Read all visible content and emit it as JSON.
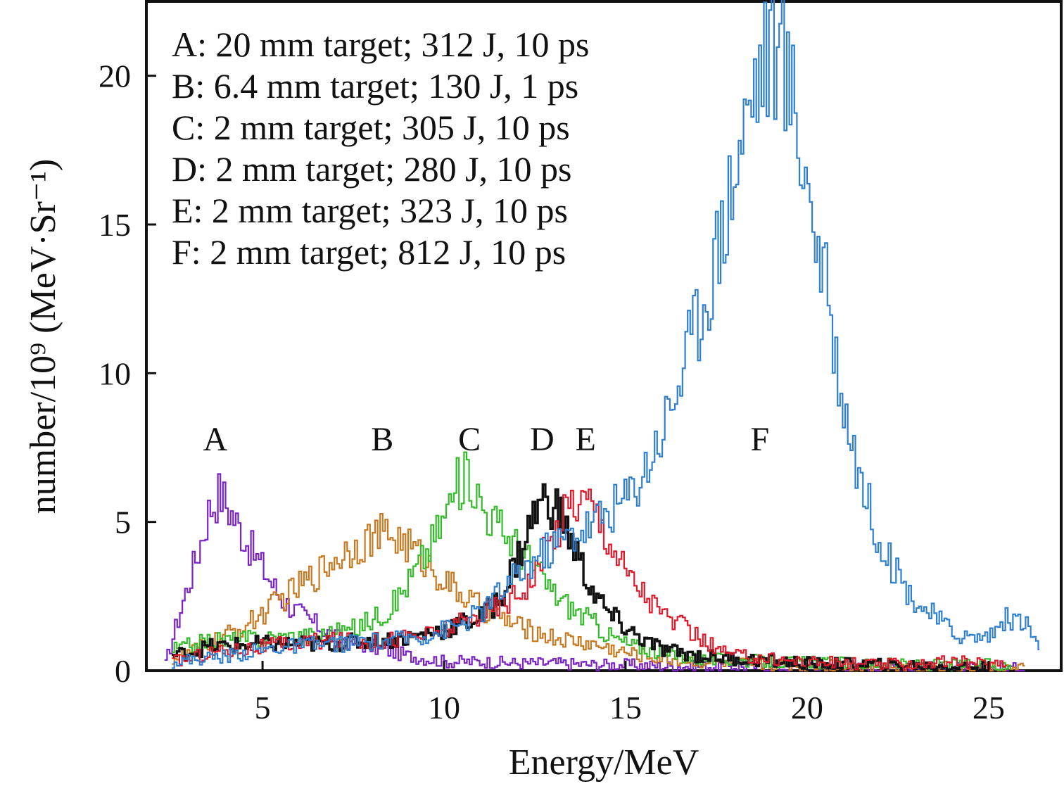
{
  "chart_data": {
    "type": "line",
    "xlabel": "Energy/MeV",
    "ylabel": "number/10⁹ (MeV·Sr⁻¹)",
    "xlim": [
      1.8,
      27.0
    ],
    "ylim": [
      0,
      22.5
    ],
    "xticks": [
      5,
      10,
      15,
      20,
      25
    ],
    "yticks": [
      0,
      5,
      10,
      15,
      20
    ],
    "grid": false,
    "legend_position": "top-left",
    "legend": [
      "A: 20 mm target; 312 J, 10 ps",
      "B: 6.4 mm target; 130 J, 1 ps",
      "C: 2 mm target; 305 J, 10 ps",
      "D: 2 mm target; 280 J, 10 ps",
      "E: 2 mm target; 323 J, 10 ps",
      "F: 2 mm target; 812 J, 10 ps"
    ],
    "series": [
      {
        "name": "A",
        "color": "#7a22c6",
        "label_at": [
          3.7,
          7.4
        ],
        "x": [
          2.3,
          2.8,
          3.2,
          3.5,
          3.8,
          4.2,
          4.6,
          5.0,
          5.5,
          6.0,
          7.0,
          8.0,
          9.0,
          10.0,
          11.0,
          12.0,
          13.0,
          14.0,
          15.0,
          16.0,
          18.0,
          20.0,
          22.0,
          24.0,
          25.5,
          26.0
        ],
        "y": [
          0.2,
          2.4,
          4.0,
          5.4,
          6.0,
          5.1,
          4.2,
          3.4,
          2.4,
          1.9,
          1.1,
          0.8,
          0.5,
          0.3,
          0.3,
          0.25,
          0.25,
          0.2,
          0.2,
          0.15,
          0.15,
          0.1,
          0.1,
          0.1,
          0.1,
          0.05
        ]
      },
      {
        "name": "B",
        "color": "#c8781e",
        "label_at": [
          8.3,
          7.4
        ],
        "x": [
          2.5,
          3.5,
          4.5,
          5.5,
          6.5,
          7.0,
          7.5,
          8.0,
          8.5,
          9.0,
          9.5,
          10.0,
          10.5,
          11.0,
          12.0,
          13.0,
          14.0,
          15.0,
          16.0,
          17.0,
          19.0,
          21.0,
          23.0,
          25.0,
          26.0
        ],
        "y": [
          0.4,
          0.9,
          1.5,
          2.4,
          3.3,
          3.8,
          4.2,
          4.5,
          4.6,
          4.2,
          3.6,
          3.0,
          2.5,
          2.1,
          1.5,
          1.1,
          0.9,
          0.6,
          0.4,
          0.3,
          0.2,
          0.15,
          0.1,
          0.1,
          0.05
        ]
      },
      {
        "name": "C",
        "color": "#33bb2a",
        "label_at": [
          10.7,
          7.4
        ],
        "x": [
          2.5,
          3.5,
          5.0,
          6.5,
          7.5,
          8.5,
          9.0,
          9.5,
          10.0,
          10.3,
          10.7,
          11.0,
          11.5,
          12.0,
          12.5,
          13.0,
          13.5,
          14.0,
          14.5,
          15.0,
          16.0,
          17.0,
          19.0,
          21.0,
          23.0,
          25.0,
          25.6
        ],
        "y": [
          0.7,
          1.0,
          1.1,
          1.2,
          1.4,
          2.1,
          3.0,
          4.0,
          5.2,
          6.2,
          6.6,
          5.6,
          4.8,
          4.2,
          3.4,
          2.6,
          2.1,
          1.7,
          1.2,
          0.9,
          0.6,
          0.4,
          0.3,
          0.25,
          0.2,
          0.2,
          0.1
        ]
      },
      {
        "name": "D",
        "color": "#111111",
        "label_at": [
          12.7,
          7.4
        ],
        "x": [
          2.5,
          3.5,
          5.0,
          6.5,
          8.0,
          9.0,
          10.0,
          11.0,
          11.5,
          12.0,
          12.5,
          12.8,
          13.2,
          13.6,
          14.0,
          14.5,
          15.0,
          15.5,
          16.0,
          17.0,
          18.0,
          20.0,
          22.0,
          24.0,
          25.0
        ],
        "y": [
          0.5,
          0.8,
          0.9,
          0.9,
          1.0,
          1.1,
          1.4,
          1.8,
          2.4,
          3.8,
          5.4,
          5.8,
          5.2,
          4.0,
          2.8,
          1.9,
          1.4,
          1.0,
          0.7,
          0.5,
          0.4,
          0.25,
          0.2,
          0.15,
          0.1
        ]
      },
      {
        "name": "E",
        "color": "#e0182a",
        "label_at": [
          13.9,
          7.4
        ],
        "x": [
          2.5,
          3.5,
          5.0,
          6.5,
          8.0,
          9.5,
          10.5,
          11.5,
          12.0,
          12.5,
          13.0,
          13.5,
          14.0,
          14.5,
          15.0,
          15.5,
          16.0,
          16.5,
          17.0,
          17.5,
          18.0,
          20.0,
          22.0,
          24.0,
          25.5
        ],
        "y": [
          0.3,
          0.6,
          0.8,
          1.0,
          1.0,
          1.2,
          1.6,
          2.2,
          2.6,
          3.3,
          4.6,
          5.8,
          5.7,
          4.5,
          3.3,
          2.6,
          1.9,
          1.5,
          1.1,
          0.7,
          0.5,
          0.3,
          0.2,
          0.3,
          0.2
        ]
      },
      {
        "name": "F",
        "color": "#2f7fd0",
        "label_at": [
          18.7,
          7.4
        ],
        "x": [
          2.5,
          4.0,
          5.5,
          7.0,
          8.5,
          9.5,
          10.5,
          11.0,
          11.5,
          12.0,
          12.5,
          13.0,
          13.5,
          14.0,
          14.5,
          15.0,
          15.5,
          16.0,
          16.5,
          17.0,
          17.5,
          18.0,
          18.5,
          19.0,
          19.5,
          20.0,
          20.5,
          21.0,
          21.5,
          22.0,
          22.5,
          23.0,
          23.5,
          24.0,
          24.5,
          25.0,
          25.5,
          26.0,
          26.4
        ],
        "y": [
          0.3,
          0.5,
          0.8,
          0.9,
          1.0,
          1.2,
          1.6,
          2.0,
          2.6,
          3.2,
          3.8,
          4.2,
          4.6,
          4.9,
          5.4,
          5.8,
          6.8,
          8.2,
          10.0,
          12.0,
          14.2,
          17.0,
          19.8,
          21.2,
          19.8,
          16.4,
          12.6,
          8.9,
          6.2,
          4.3,
          3.1,
          2.3,
          1.8,
          1.3,
          1.1,
          1.2,
          1.8,
          1.6,
          0.7
        ]
      }
    ]
  }
}
